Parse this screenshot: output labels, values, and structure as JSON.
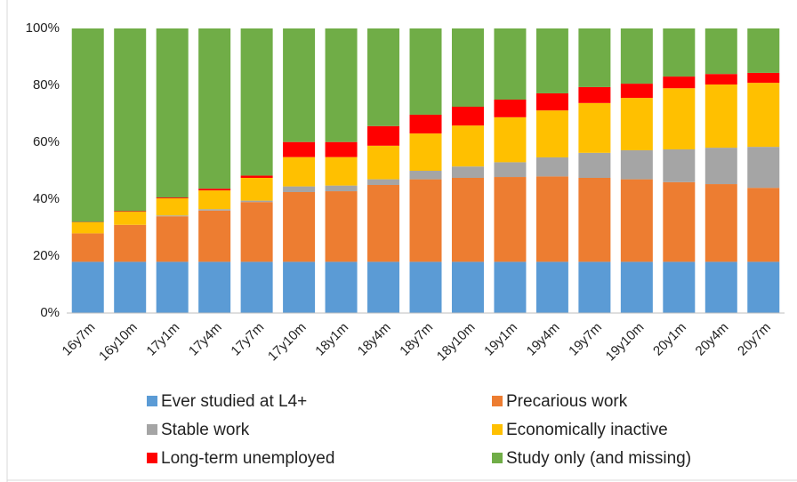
{
  "chart_data": {
    "type": "stacked_bar",
    "categories": [
      "16y7m",
      "16y10m",
      "17y1m",
      "17y4m",
      "17y7m",
      "17y10m",
      "18y1m",
      "18y4m",
      "18y7m",
      "18y10m",
      "19y1m",
      "19y4m",
      "19y7m",
      "19y10m",
      "20y1m",
      "20y4m",
      "20y7m"
    ],
    "series": [
      {
        "name": "Ever studied at L4+",
        "color": "#5b9bd5",
        "values": [
          18,
          18,
          18,
          18,
          18,
          18,
          18,
          18,
          18,
          18,
          18,
          18,
          18,
          18,
          18,
          18,
          18
        ]
      },
      {
        "name": "Precarious work",
        "color": "#ed7d31",
        "values": [
          10,
          13,
          16,
          18,
          21,
          24.5,
          24.8,
          27,
          29,
          29.5,
          29.8,
          30,
          29.5,
          29,
          28,
          27.3,
          26
        ]
      },
      {
        "name": "Stable work",
        "color": "#a5a5a5",
        "values": [
          0,
          0,
          0.3,
          0.5,
          0.5,
          2,
          2,
          2,
          3,
          4,
          5.2,
          6.7,
          8.8,
          10.2,
          11.5,
          12.8,
          14.4
        ]
      },
      {
        "name": "Economically inactive",
        "color": "#ffc000",
        "values": [
          3.9,
          4.6,
          6,
          6.6,
          8,
          10.3,
          10,
          11.8,
          13.1,
          14.4,
          15.8,
          16.5,
          17.5,
          18.4,
          21.5,
          22.2,
          22.5
        ]
      },
      {
        "name": "Long-term unemployed",
        "color": "#ff0000",
        "values": [
          0.1,
          0.2,
          0.3,
          0.6,
          0.8,
          5.3,
          5.3,
          6.9,
          6.6,
          6.6,
          6.2,
          6,
          5.6,
          5,
          4.1,
          3.7,
          3.5
        ]
      },
      {
        "name": "Study only (and missing)",
        "color": "#70ad47",
        "values": [
          68,
          64.2,
          59.4,
          56.3,
          51.7,
          39.9,
          39.9,
          34.3,
          30.3,
          27.5,
          25,
          22.8,
          20.6,
          19.4,
          16.9,
          16,
          15.6
        ]
      }
    ],
    "ylim": [
      0,
      100
    ],
    "yticks": [
      {
        "value": 0,
        "label": "0%"
      },
      {
        "value": 20,
        "label": "20%"
      },
      {
        "value": 40,
        "label": "40%"
      },
      {
        "value": 60,
        "label": "60%"
      },
      {
        "value": 80,
        "label": "80%"
      },
      {
        "value": 100,
        "label": "100%"
      }
    ],
    "grid": false
  }
}
